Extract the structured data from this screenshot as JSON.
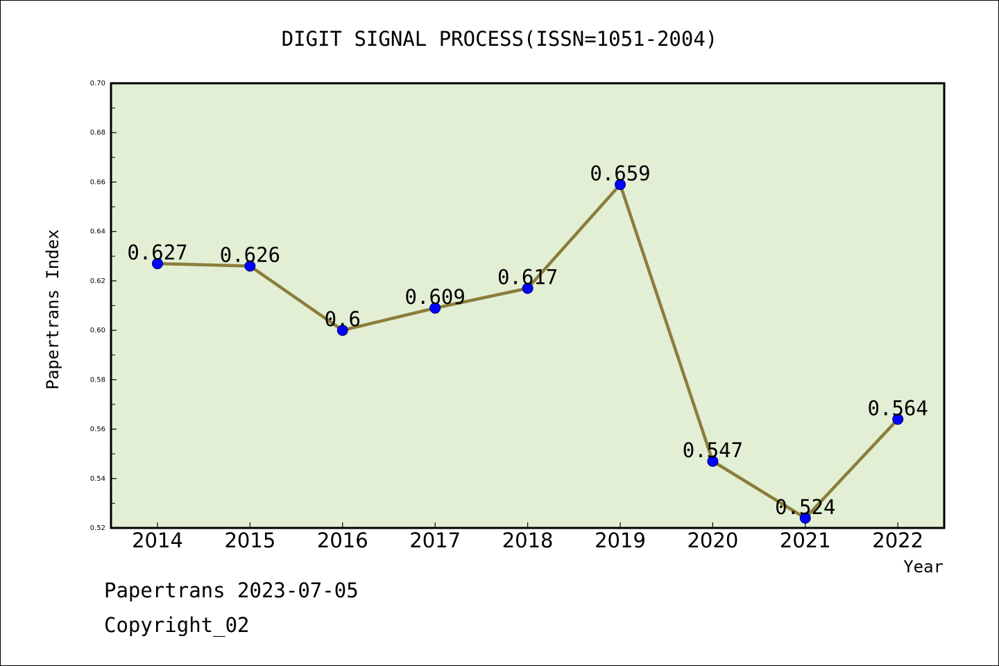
{
  "chart_data": {
    "type": "line",
    "title": "DIGIT SIGNAL PROCESS(ISSN=1051-2004)",
    "xlabel": "Year",
    "ylabel": "Papertrans Index",
    "categories": [
      "2014",
      "2015",
      "2016",
      "2017",
      "2018",
      "2019",
      "2020",
      "2021",
      "2022"
    ],
    "series": [
      {
        "values": [
          0.627,
          0.626,
          0.6,
          0.609,
          0.617,
          0.659,
          0.547,
          0.524,
          0.564
        ],
        "data_labels": [
          "0.627",
          "0.626",
          "0.6",
          "0.609",
          "0.617",
          "0.659",
          "0.547",
          "0.524",
          "0.564"
        ]
      }
    ],
    "ylim": [
      0.52,
      0.7
    ],
    "yticks": [
      "0.52",
      "0.54",
      "0.56",
      "0.58",
      "0.60",
      "0.62",
      "0.64",
      "0.66",
      "0.68",
      "0.70"
    ],
    "grid": false,
    "legend": "none",
    "colors": {
      "plot_background": "#e2efd5",
      "line": "#8b7d3a",
      "marker": "#0000ff"
    }
  },
  "footer": {
    "date_line": "Papertrans 2023-07-05",
    "copyright": "Copyright_02"
  }
}
